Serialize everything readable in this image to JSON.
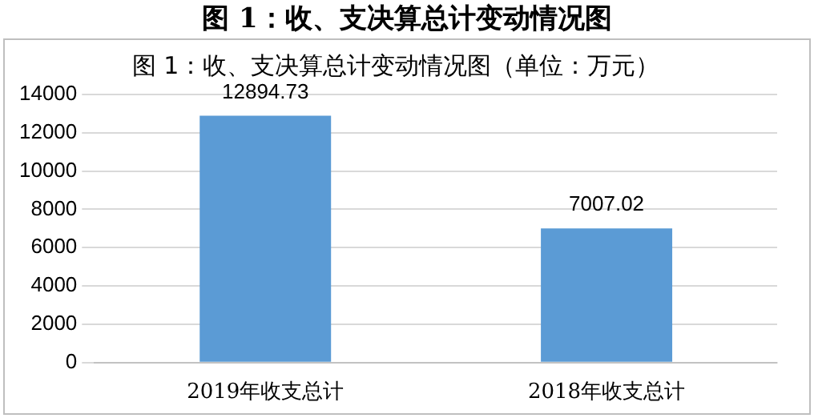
{
  "chart_data": {
    "type": "bar",
    "title": "图 1：收、支决算总计变动情况图",
    "subtitle": "图 1：收、支决算总计变动情况图（单位：万元）",
    "categories": [
      "2019年收支总计",
      "2018年收支总计"
    ],
    "values": [
      12894.73,
      7007.02
    ],
    "color": "#5b9bd5",
    "ylim": [
      0,
      14000
    ],
    "yticks": [
      0,
      2000,
      4000,
      6000,
      8000,
      10000,
      12000,
      14000
    ],
    "grid": "y",
    "data_labels": true,
    "legend": false
  }
}
